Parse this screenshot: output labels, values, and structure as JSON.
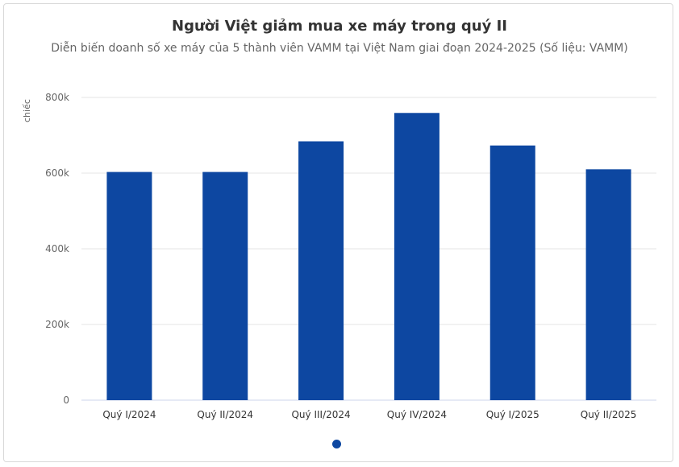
{
  "chart_data": {
    "type": "bar",
    "title": "Người Việt giảm mua xe máy trong quý II",
    "subtitle": "Diễn biến doanh số xe máy của 5 thành viên VAMM tại Việt Nam giai đoạn 2024-2025 (Số liệu: VAMM)",
    "ylabel": "chiếc",
    "xlabel": "",
    "categories": [
      "Quý I/2024",
      "Quý II/2024",
      "Quý III/2024",
      "Quý IV/2024",
      "Quý I/2025",
      "Quý II/2025"
    ],
    "values": [
      603000,
      603000,
      684000,
      759000,
      673000,
      610000
    ],
    "ylim": [
      0,
      800000
    ],
    "yticks": [
      0,
      200000,
      400000,
      600000,
      800000
    ],
    "ytick_labels": [
      "0",
      "200k",
      "400k",
      "600k",
      "800k"
    ],
    "grid": true,
    "legend": "none"
  },
  "colors": {
    "bar": "#0d47a1",
    "grid": "#e6e6e6",
    "axis": "#ccd6eb",
    "text": "#333333",
    "muted": "#666666",
    "pager_dot": "#0d47a1"
  }
}
